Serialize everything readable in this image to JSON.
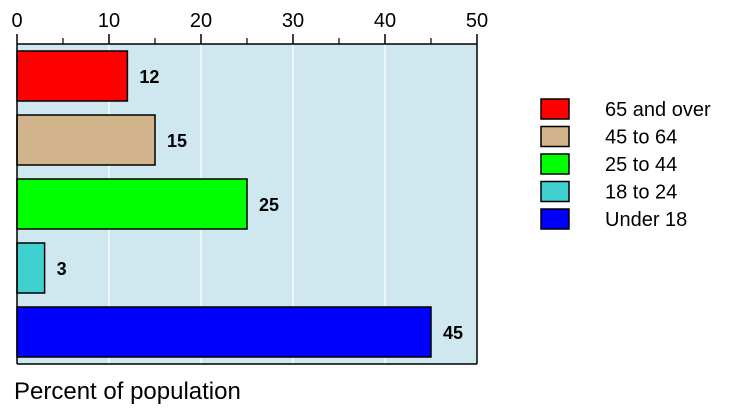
{
  "chart_data": {
    "type": "bar",
    "orientation": "horizontal",
    "categories": [
      "65 and over",
      "45 to 64",
      "25 to 44",
      "18 to 24",
      "Under 18"
    ],
    "values": [
      12,
      15,
      25,
      3,
      45
    ],
    "colors": [
      "#ff0000",
      "#d2b48c",
      "#00ff00",
      "#40d0d0",
      "#0000ff"
    ],
    "xlabel": "Percent of population",
    "xlim": [
      0,
      50
    ],
    "xticks": [
      0,
      10,
      20,
      30,
      40,
      50
    ],
    "tick_labels": [
      "0",
      "10",
      "20",
      "30",
      "40",
      "50"
    ],
    "data_labels": [
      "12",
      "15",
      "25",
      "3",
      "45"
    ],
    "plot_background": "#cfe8f0",
    "grid": true,
    "legend_position": "right",
    "legend": [
      {
        "label": "65 and over",
        "color": "#ff0000"
      },
      {
        "label": "45 to 64",
        "color": "#d2b48c"
      },
      {
        "label": "25 to 44",
        "color": "#00ff00"
      },
      {
        "label": "18 to 24",
        "color": "#40d0d0"
      },
      {
        "label": "Under 18",
        "color": "#0000ff"
      }
    ]
  }
}
